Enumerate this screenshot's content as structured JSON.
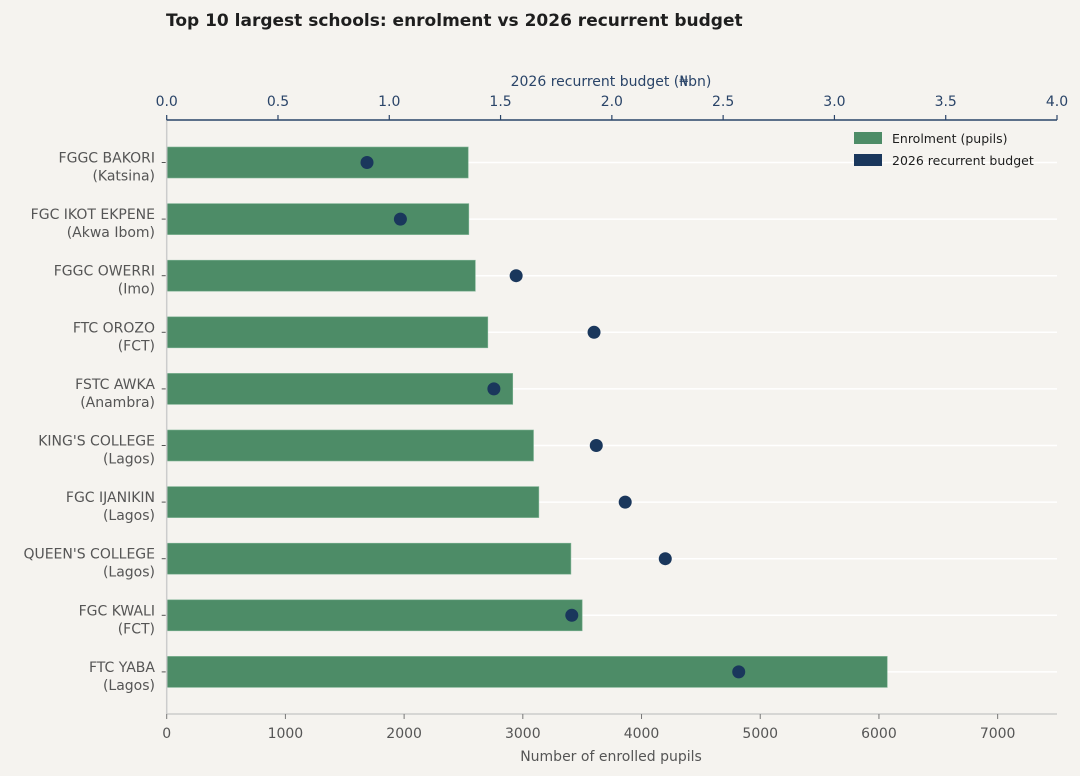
{
  "chart_data": {
    "type": "bar",
    "title": "Top 10 largest schools: enrolment vs 2026 recurrent budget",
    "orientation": "horizontal",
    "categories": [
      {
        "name": "FGGC BAKORI",
        "state": "(Katsina)"
      },
      {
        "name": "FGC IKOT EKPENE",
        "state": "(Akwa Ibom)"
      },
      {
        "name": "FGGC OWERRI",
        "state": "(Imo)"
      },
      {
        "name": "FTC OROZO",
        "state": "(FCT)"
      },
      {
        "name": "FSTC AWKA",
        "state": "(Anambra)"
      },
      {
        "name": "KING'S COLLEGE",
        "state": "(Lagos)"
      },
      {
        "name": "FGC IJANIKIN",
        "state": "(Lagos)"
      },
      {
        "name": "QUEEN'S COLLEGE",
        "state": "(Lagos)"
      },
      {
        "name": "FGC KWALI",
        "state": "(FCT)"
      },
      {
        "name": "FTC YABA",
        "state": "(Lagos)"
      }
    ],
    "series": [
      {
        "name": "Enrolment (pupils)",
        "type": "bar",
        "axis": "bottom",
        "color": "#4d8c67",
        "values": [
          2540,
          2545,
          2600,
          2705,
          2915,
          3090,
          3135,
          3405,
          3500,
          6070
        ]
      },
      {
        "name": "2026 recurrent budget",
        "type": "scatter",
        "axis": "top",
        "color": "#1a375c",
        "values": [
          0.9,
          1.05,
          1.57,
          1.92,
          1.47,
          1.93,
          2.06,
          2.24,
          1.82,
          2.57
        ]
      }
    ],
    "xlabel": "Number of enrolled pupils",
    "xlim": [
      0,
      7500
    ],
    "xticks": [
      "0",
      "1000",
      "2000",
      "3000",
      "4000",
      "5000",
      "6000",
      "7000"
    ],
    "xtick_values": [
      0,
      1000,
      2000,
      3000,
      4000,
      5000,
      6000,
      7000
    ],
    "x2label": "2026 recurrent budget (₦bn)",
    "x2lim": [
      0,
      4.0
    ],
    "x2ticks": [
      "0.0",
      "0.5",
      "1.0",
      "1.5",
      "2.0",
      "2.5",
      "3.0",
      "3.5",
      "4.0"
    ],
    "x2tick_values": [
      0,
      0.5,
      1.0,
      1.5,
      2.0,
      2.5,
      3.0,
      3.5,
      4.0
    ],
    "grid": "horizontal, at category centers",
    "legend": {
      "position": "top-right",
      "entries": [
        "Enrolment (pupils)",
        "2026 recurrent budget"
      ]
    },
    "colors": {
      "background": "#f5f3ef",
      "bar": "#4d8c67",
      "dot": "#1a375c",
      "top_axis": "#2a4468",
      "bottom_axis": "#cccccc"
    }
  }
}
